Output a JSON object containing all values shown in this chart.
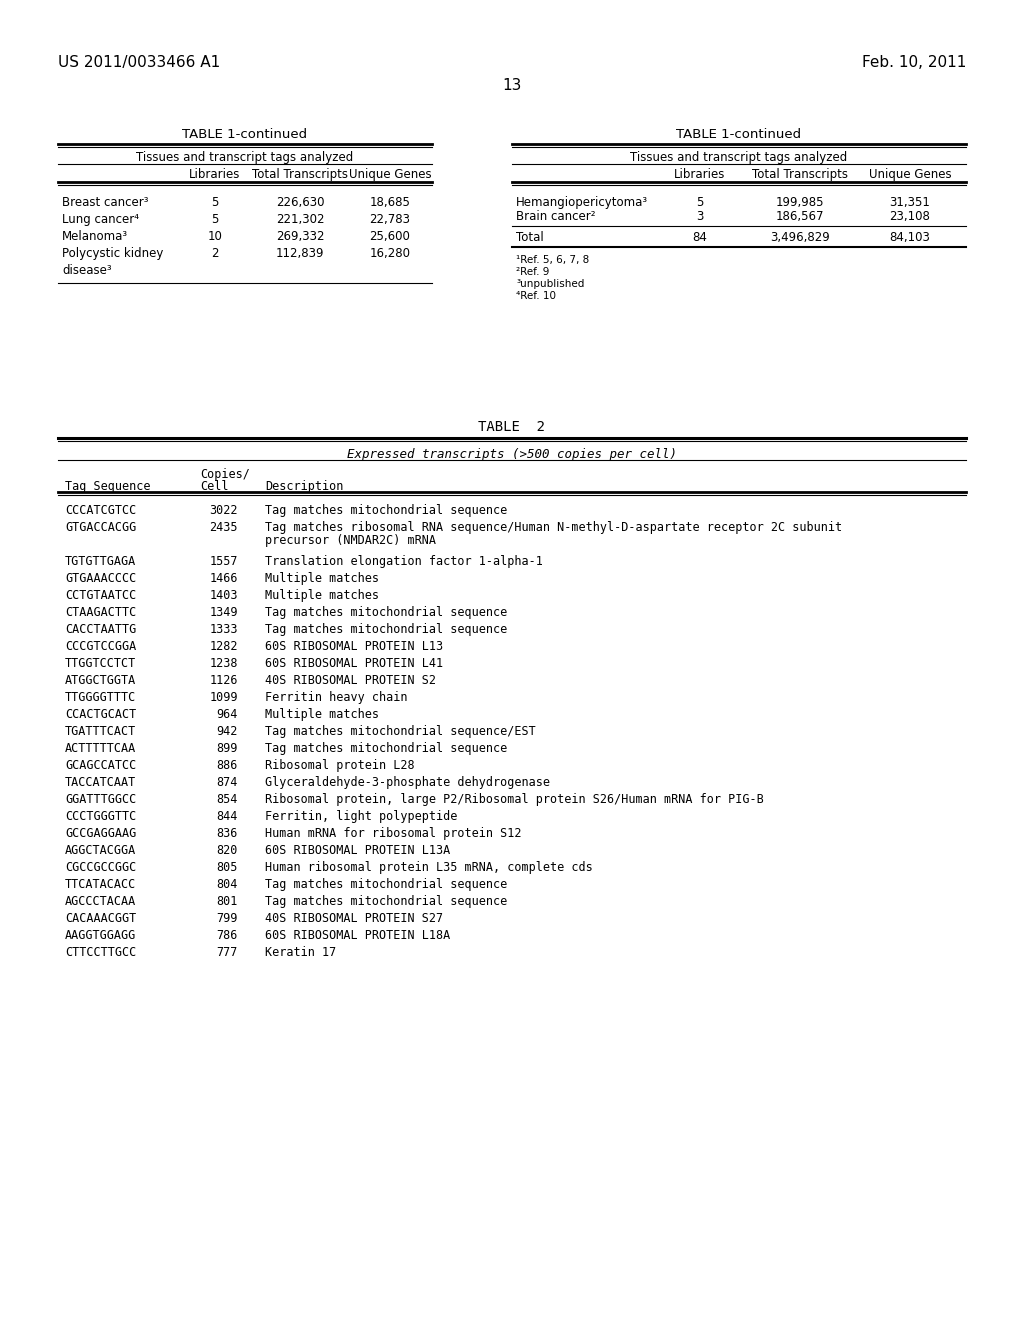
{
  "header_left": "US 2011/0033466 A1",
  "header_right": "Feb. 10, 2011",
  "page_number": "13",
  "bg_color": "#ffffff",
  "table1_left": {
    "title": "TABLE 1-continued",
    "subtitle": "Tissues and transcript tags analyzed",
    "col_headers": [
      "Libraries",
      "Total Transcripts",
      "Unique Genes"
    ],
    "rows": [
      [
        "Breast cancer³",
        "5",
        "226,630",
        "18,685"
      ],
      [
        "Lung cancer⁴",
        "5",
        "221,302",
        "22,783"
      ],
      [
        "Melanoma³",
        "10",
        "269,332",
        "25,600"
      ],
      [
        "Polycystic kidney",
        "2",
        "112,839",
        "16,280"
      ],
      [
        "disease³",
        "",
        "",
        ""
      ]
    ]
  },
  "table1_right": {
    "title": "TABLE 1-continued",
    "subtitle": "Tissues and transcript tags analyzed",
    "col_headers": [
      "Libraries",
      "Total Transcripts",
      "Unique Genes"
    ],
    "rows": [
      [
        "Hemangiopericytoma³",
        "5",
        "199,985",
        "31,351"
      ],
      [
        "Brain cancer²",
        "3",
        "186,567",
        "23,108"
      ]
    ],
    "total_row": [
      "Total",
      "84",
      "3,496,829",
      "84,103"
    ],
    "footnotes": [
      "¹Ref. 5, 6, 7, 8",
      "²Ref. 9",
      "³unpublished",
      "⁴Ref. 10"
    ]
  },
  "table2": {
    "title": "TABLE  2",
    "subtitle": "Expressed transcripts (>500 copies per cell)",
    "rows": [
      [
        "CCCATCGTCC",
        "3022",
        "Tag matches mitochondrial sequence",
        false
      ],
      [
        "GTGACCACGG",
        "2435",
        "Tag matches ribosomal RNA sequence/Human N-methyl-D-aspartate receptor 2C subunit",
        true,
        "precursor (NMDAR2C) mRNA"
      ],
      [
        "TGTGTTGAGA",
        "1557",
        "Translation elongation factor 1-alpha-1",
        false
      ],
      [
        "GTGAAACCCC",
        "1466",
        "Multiple matches",
        false
      ],
      [
        "CCTGTAATCC",
        "1403",
        "Multiple matches",
        false
      ],
      [
        "CTAAGACTTC",
        "1349",
        "Tag matches mitochondrial sequence",
        false
      ],
      [
        "CACCTAATTG",
        "1333",
        "Tag matches mitochondrial sequence",
        false
      ],
      [
        "CCCGTCCGGA",
        "1282",
        "60S RIBOSOMAL PROTEIN L13",
        false
      ],
      [
        "TTGGTCCTCT",
        "1238",
        "60S RIBOSOMAL PROTEIN L41",
        false
      ],
      [
        "ATGGCTGGTA",
        "1126",
        "40S RIBOSOMAL PROTEIN S2",
        false
      ],
      [
        "TTGGGGTTTC",
        "1099",
        "Ferritin heavy chain",
        false
      ],
      [
        "CCACTGCACT",
        "964",
        "Multiple matches",
        false
      ],
      [
        "TGATTTCACT",
        "942",
        "Tag matches mitochondrial sequence/EST",
        false
      ],
      [
        "ACTTTTTCAA",
        "899",
        "Tag matches mitochondrial sequence",
        false
      ],
      [
        "GCAGCCATCC",
        "886",
        "Ribosomal protein L28",
        false
      ],
      [
        "TACCATCAAT",
        "874",
        "Glyceraldehyde-3-phosphate dehydrogenase",
        false
      ],
      [
        "GGATTTGGCC",
        "854",
        "Ribosomal protein, large P2/Ribosomal protein S26/Human mRNA for PIG-B",
        false
      ],
      [
        "CCCTGGGTTC",
        "844",
        "Ferritin, light polypeptide",
        false
      ],
      [
        "GCCGAGGAAG",
        "836",
        "Human mRNA for ribosomal protein S12",
        false
      ],
      [
        "AGGCTACGGA",
        "820",
        "60S RIBOSOMAL PROTEIN L13A",
        false
      ],
      [
        "CGCCGCCGGC",
        "805",
        "Human ribosomal protein L35 mRNA, complete cds",
        false
      ],
      [
        "TTCATACACC",
        "804",
        "Tag matches mitochondrial sequence",
        false
      ],
      [
        "AGCCCTACAA",
        "801",
        "Tag matches mitochondrial sequence",
        false
      ],
      [
        "CACAAACGGT",
        "799",
        "40S RIBOSOMAL PROTEIN S27",
        false
      ],
      [
        "AAGGTGGAGG",
        "786",
        "60S RIBOSOMAL PROTEIN L18A",
        false
      ],
      [
        "CTTCCTTGCC",
        "777",
        "Keratin 17",
        false
      ]
    ]
  }
}
